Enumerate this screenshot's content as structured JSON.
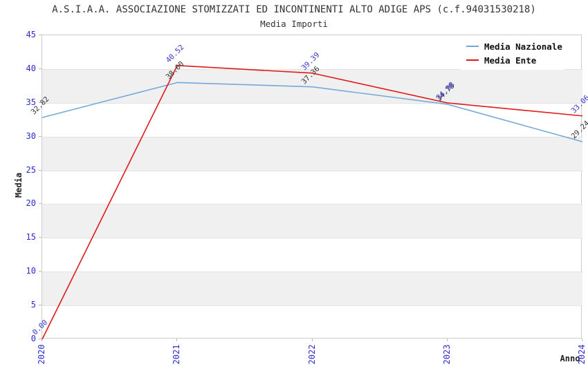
{
  "chart_data": {
    "type": "line",
    "title": "A.S.I.A.A. ASSOCIAZIONE STOMIZZATI ED INCONTINENTI ALTO ADIGE APS (c.f.94031530218)",
    "subtitle": "Media Importi",
    "xlabel": "Anno",
    "ylabel": "Media",
    "x": [
      "2020",
      "2021",
      "2022",
      "2023",
      "2024"
    ],
    "ylim": [
      0,
      45
    ],
    "yticks": [
      0,
      5,
      10,
      15,
      20,
      25,
      30,
      35,
      40,
      45
    ],
    "grid": "horizontal gridlines with alternating gray/white bands",
    "legend_position": "top-right",
    "series": [
      {
        "name": "Media Nazionale",
        "color": "#74a9d8",
        "label_color": "#333333",
        "values": [
          32.82,
          38.0,
          37.36,
          34.78,
          29.24
        ],
        "labels": [
          "32.82",
          "38.00",
          "37.36",
          "34.78",
          "29.24"
        ]
      },
      {
        "name": "Media Ente",
        "color": "#e01818",
        "label_color": "#3333cc",
        "values": [
          0.0,
          40.52,
          39.39,
          34.98,
          33.06
        ],
        "labels": [
          "0.00",
          "40.52",
          "39.39",
          "34.98",
          "33.06"
        ]
      }
    ],
    "colors": {
      "tick_label": "#2b2bd0",
      "band_gray": "#f0f0f0",
      "gridline": "#e2e2e2",
      "axis_border": "#cccccc",
      "title_text": "#333333"
    }
  }
}
